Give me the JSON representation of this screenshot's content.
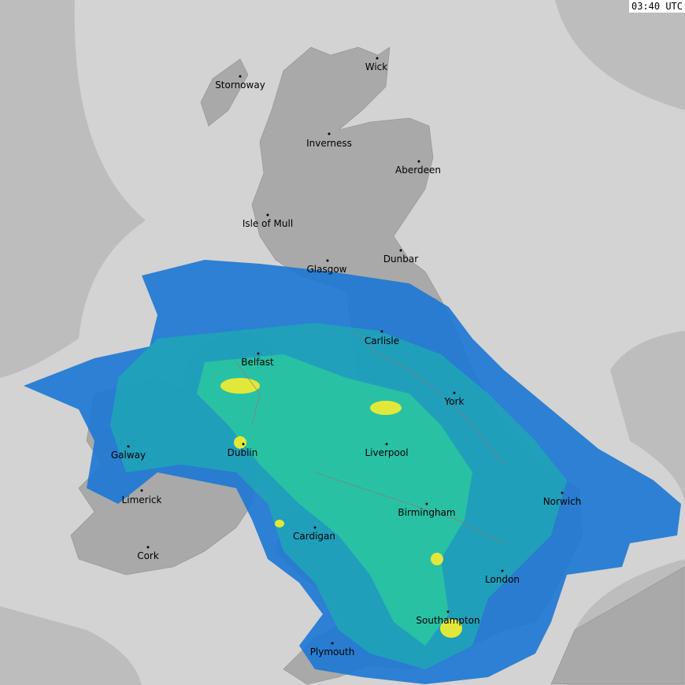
{
  "timestamp": "03:40 UTC",
  "colors": {
    "outside_coverage": "#bdbdbd",
    "coverage": "#d3d3d3",
    "land": "#a9a9a9",
    "borders": "#a07070",
    "rain_light": "#1e78d2",
    "rain_moderate": "#1fa3b8",
    "rain_heavier": "#2bc7a0",
    "rain_heavy": "#e2e83a"
  },
  "cities": [
    {
      "name": "Wick"
    },
    {
      "name": "Stornoway"
    },
    {
      "name": "Inverness"
    },
    {
      "name": "Aberdeen"
    },
    {
      "name": "Isle of Mull"
    },
    {
      "name": "Glasgow"
    },
    {
      "name": "Dunbar"
    },
    {
      "name": "Carlisle"
    },
    {
      "name": "Belfast"
    },
    {
      "name": "York"
    },
    {
      "name": "Galway"
    },
    {
      "name": "Dublin"
    },
    {
      "name": "Liverpool"
    },
    {
      "name": "Limerick"
    },
    {
      "name": "Norwich"
    },
    {
      "name": "Birmingham"
    },
    {
      "name": "Cardigan"
    },
    {
      "name": "Cork"
    },
    {
      "name": "London"
    },
    {
      "name": "Southampton"
    },
    {
      "name": "Plymouth"
    }
  ]
}
